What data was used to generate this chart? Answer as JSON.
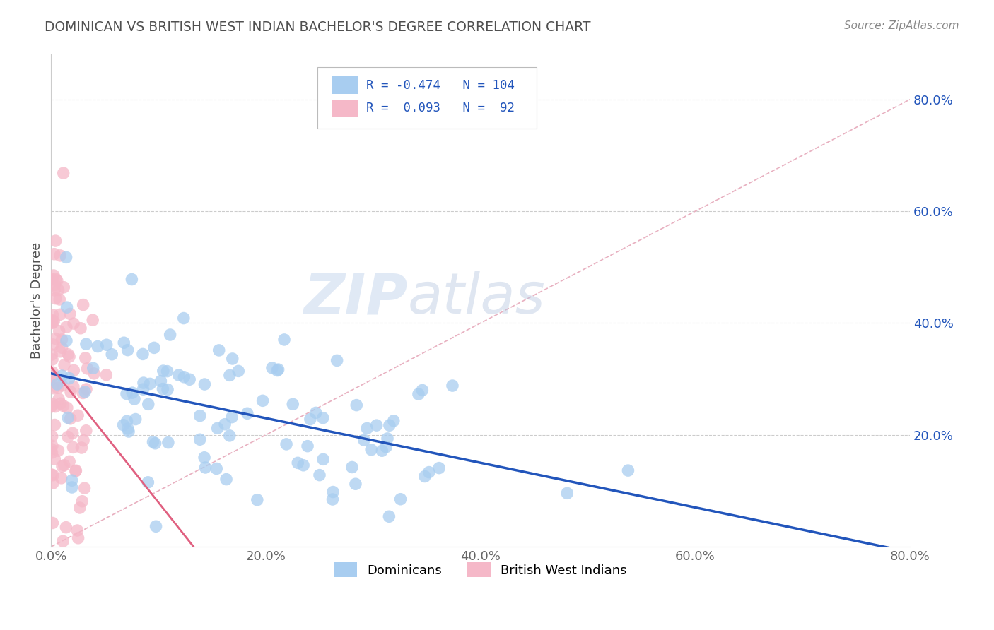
{
  "title": "DOMINICAN VS BRITISH WEST INDIAN BACHELOR'S DEGREE CORRELATION CHART",
  "source_text": "Source: ZipAtlas.com",
  "ylabel": "Bachelor's Degree",
  "xlim": [
    0.0,
    0.8
  ],
  "ylim": [
    0.0,
    0.88
  ],
  "xtick_labels": [
    "0.0%",
    "20.0%",
    "40.0%",
    "60.0%",
    "80.0%"
  ],
  "xtick_vals": [
    0.0,
    0.2,
    0.4,
    0.6,
    0.8
  ],
  "ytick_labels": [
    "20.0%",
    "40.0%",
    "60.0%",
    "80.0%"
  ],
  "ytick_vals": [
    0.2,
    0.4,
    0.6,
    0.8
  ],
  "blue_color": "#a8cdf0",
  "pink_color": "#f5b8c8",
  "blue_line_color": "#2255bb",
  "pink_line_color": "#e06080",
  "diag_line_color": "#e8b0c0",
  "blue_r": -0.474,
  "blue_n": 104,
  "pink_r": 0.093,
  "pink_n": 92,
  "legend_blue_label": "Dominicans",
  "legend_pink_label": "British West Indians",
  "watermark_zip": "ZIP",
  "watermark_atlas": "atlas",
  "background_color": "#ffffff",
  "grid_color": "#cccccc",
  "title_color": "#505050",
  "source_color": "#888888"
}
